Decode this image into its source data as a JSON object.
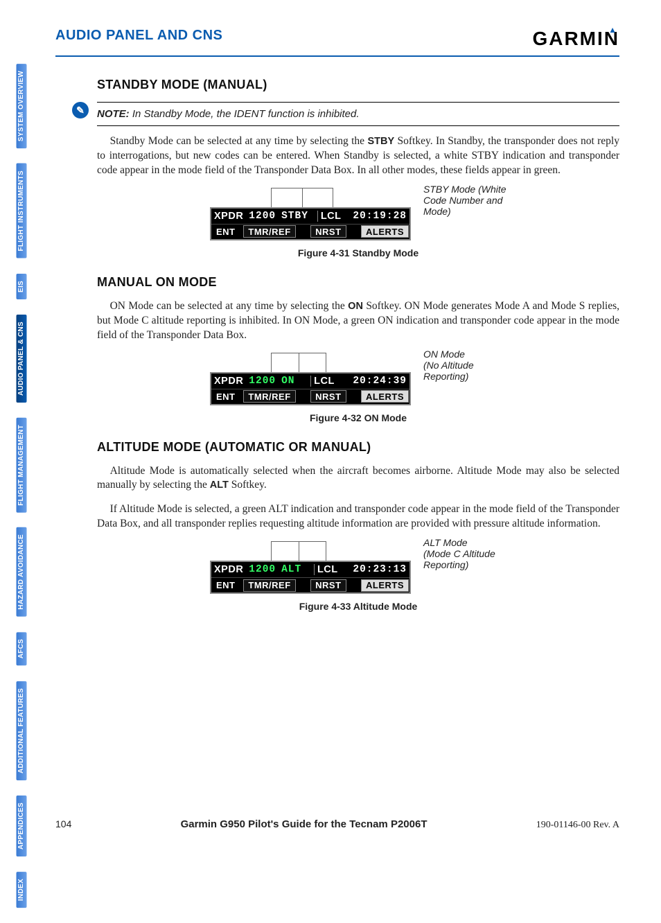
{
  "header": {
    "section": "AUDIO PANEL AND CNS",
    "logo": "GARMIN"
  },
  "tabs": [
    "SYSTEM OVERVIEW",
    "FLIGHT INSTRUMENTS",
    "EIS",
    "AUDIO PANEL & CNS",
    "FLIGHT MANAGEMENT",
    "HAZARD AVOIDANCE",
    "AFCS",
    "ADDITIONAL FEATURES",
    "APPENDICES",
    "INDEX"
  ],
  "tabs_active_index": 3,
  "standby": {
    "heading": "STANDBY MODE (MANUAL)",
    "note_label": "NOTE:",
    "note_text": "In Standby Mode, the IDENT function is inhibited.",
    "p1a": "Standby Mode can be selected at any time by selecting the ",
    "p1b": "STBY",
    "p1c": " Softkey.  In Standby, the transponder does not reply to interrogations, but new codes can be entered.  When Standby is selected, a white STBY indication and transponder code appear in the mode field of the Transponder Data Box.  In all other modes, these fields appear in green.",
    "callout": "STBY Mode (White Code Number and Mode)",
    "caption": "Figure 4-31  Standby Mode",
    "display": {
      "xpdr_label": "XPDR",
      "code": "1200",
      "mode": "STBY",
      "mode_color": "#ffffff",
      "code_color": "#ffffff",
      "lcl_label": "LCL",
      "time": "20:19:28",
      "row2": [
        "ENT",
        "TMR/REF",
        "NRST",
        "ALERTS"
      ]
    }
  },
  "onmode": {
    "heading": "MANUAL ON MODE",
    "p1a": "ON Mode can be selected at any time by selecting the ",
    "p1b": "ON",
    "p1c": " Softkey.  ON Mode generates Mode A and Mode S replies, but Mode C altitude reporting is inhibited.  In ON Mode, a green ON indication and transponder code appear in the mode field of the Transponder Data Box.",
    "callout": "ON Mode\n(No Altitude Reporting)",
    "caption": "Figure 4-32  ON Mode",
    "display": {
      "xpdr_label": "XPDR",
      "code": "1200",
      "mode": "ON",
      "mode_color": "#33ff66",
      "code_color": "#33ff66",
      "lcl_label": "LCL",
      "time": "20:24:39",
      "row2": [
        "ENT",
        "TMR/REF",
        "NRST",
        "ALERTS"
      ]
    }
  },
  "altmode": {
    "heading": "ALTITUDE MODE (AUTOMATIC OR MANUAL)",
    "p1": "Altitude Mode is automatically selected when the aircraft becomes airborne.  Altitude Mode may also be selected manually by selecting the ",
    "p1b": "ALT",
    "p1c": " Softkey.",
    "p2": "If Altitude Mode is selected, a green ALT indication and transponder code appear in the mode field of the Transponder Data Box, and all transponder replies requesting altitude information are provided with pressure altitude information.",
    "callout": "ALT Mode\n(Mode C Altitude Reporting)",
    "caption": "Figure 4-33  Altitude Mode",
    "display": {
      "xpdr_label": "XPDR",
      "code": "1200",
      "mode": "ALT",
      "mode_color": "#33ff66",
      "code_color": "#33ff66",
      "lcl_label": "LCL",
      "time": "20:23:13",
      "row2": [
        "ENT",
        "TMR/REF",
        "NRST",
        "ALERTS"
      ]
    }
  },
  "footer": {
    "page": "104",
    "title": "Garmin G950 Pilot's Guide for the Tecnam P2006T",
    "rev": "190-01146-00  Rev. A"
  }
}
